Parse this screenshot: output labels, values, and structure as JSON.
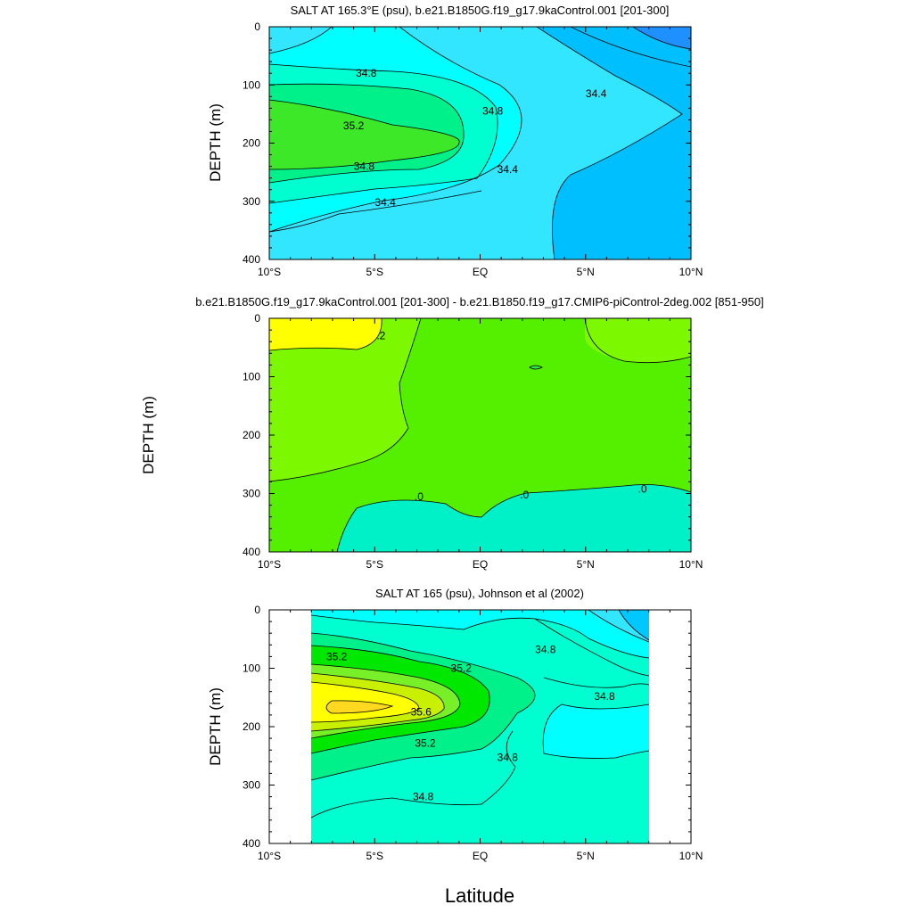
{
  "chart_data": [
    {
      "type": "contour",
      "title": "SALT AT 165.3°E (psu), b.e21.B1850G.f19_g17.9kaControl.001 [201-300]",
      "xlabel": "",
      "ylabel": "DEPTH (m)",
      "xlim": [
        -10,
        10
      ],
      "ylim": [
        400,
        0
      ],
      "x_ticks": [
        "10°S",
        "5°S",
        "EQ",
        "5°N",
        "10°N"
      ],
      "y_ticks": [
        "0",
        "100",
        "200",
        "300",
        "400"
      ],
      "contour_labels": [
        {
          "text": "34.8",
          "lat": -5.4,
          "depth": 80
        },
        {
          "text": "35.2",
          "lat": -6.0,
          "depth": 170
        },
        {
          "text": "34.8",
          "lat": 0.6,
          "depth": 145
        },
        {
          "text": "34.8",
          "lat": -5.5,
          "depth": 240
        },
        {
          "text": "34.4",
          "lat": 1.3,
          "depth": 245
        },
        {
          "text": "34.4",
          "lat": -4.5,
          "depth": 302
        },
        {
          "text": "34.4",
          "lat": 5.5,
          "depth": 115
        }
      ],
      "colors": [
        "#1e90ff",
        "#00bfff",
        "#33e6ff",
        "#00ffff",
        "#00ffd0",
        "#00f08a",
        "#3ce828"
      ]
    },
    {
      "type": "contour",
      "title": "b.e21.B1850G.f19_g17.9kaControl.001 [201-300] - b.e21.B1850.f19_g17.CMIP6-piControl-2deg.002 [851-950]",
      "xlabel": "",
      "ylabel": "DEPTH (m)",
      "xlim": [
        -10,
        10
      ],
      "ylim": [
        400,
        0
      ],
      "x_ticks": [
        "10°S",
        "5°S",
        "EQ",
        "5°N",
        "10°N"
      ],
      "y_ticks": [
        "0",
        "100",
        "200",
        "300",
        "400"
      ],
      "contour_labels": [
        {
          "text": ".2",
          "lat": -4.7,
          "depth": 30
        },
        {
          "text": ".0",
          "lat": -2.9,
          "depth": 305
        },
        {
          "text": ".0",
          "lat": 2.1,
          "depth": 302
        },
        {
          "text": ".0",
          "lat": 7.7,
          "depth": 292
        }
      ],
      "colors": [
        "#ffff00",
        "#7cf800",
        "#55f000",
        "#30e840",
        "#00f0c8"
      ]
    },
    {
      "type": "contour",
      "title": "SALT AT 165 (psu), Johnson et al (2002)",
      "xlabel": "Latitude",
      "ylabel": "DEPTH (m)",
      "xlim": [
        -10,
        10
      ],
      "ylim": [
        400,
        0
      ],
      "data_lat_range": [
        -8,
        8
      ],
      "x_ticks": [
        "10°S",
        "5°S",
        "EQ",
        "5°N",
        "10°N"
      ],
      "y_ticks": [
        "0",
        "100",
        "200",
        "300",
        "400"
      ],
      "contour_labels": [
        {
          "text": "35.2",
          "lat": -6.8,
          "depth": 80
        },
        {
          "text": "35.2",
          "lat": -0.9,
          "depth": 100
        },
        {
          "text": "34.8",
          "lat": 3.1,
          "depth": 68
        },
        {
          "text": "34.8",
          "lat": 5.9,
          "depth": 148
        },
        {
          "text": "35.6",
          "lat": -2.8,
          "depth": 175
        },
        {
          "text": "35.2",
          "lat": -2.6,
          "depth": 228
        },
        {
          "text": "34.8",
          "lat": 1.3,
          "depth": 253
        },
        {
          "text": "34.8",
          "lat": -2.7,
          "depth": 320
        }
      ],
      "colors": [
        "#00c8ff",
        "#33e6ff",
        "#00ffff",
        "#00ffd0",
        "#00f08a",
        "#00e800",
        "#78f028",
        "#c8f000",
        "#ffff00",
        "#ffd820"
      ]
    }
  ]
}
